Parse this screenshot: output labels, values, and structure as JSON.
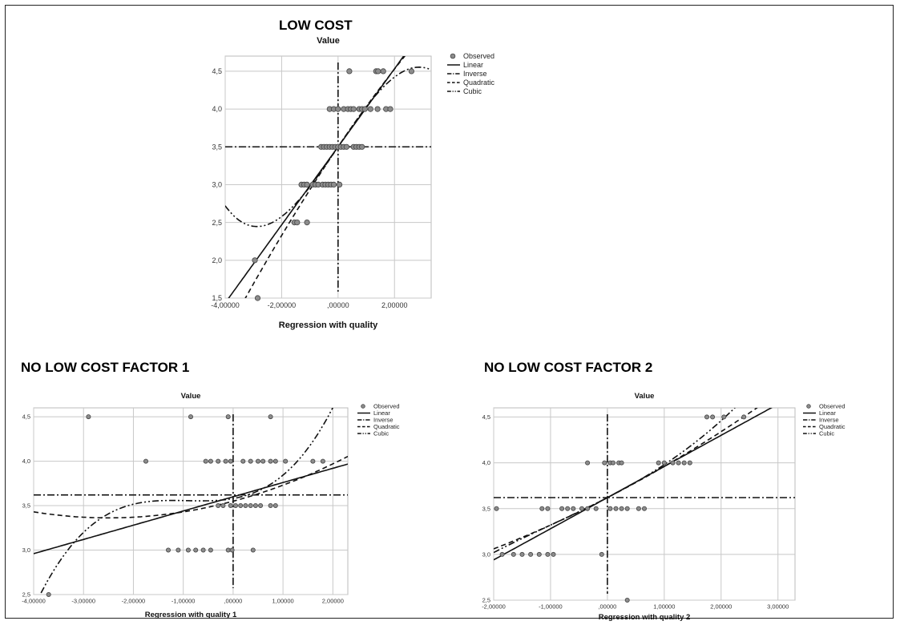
{
  "section_titles": {
    "low_cost": "LOW COST",
    "factor1": "NO LOW COST FACTOR 1",
    "factor2": "NO LOW COST FACTOR 2"
  },
  "chart_data": [
    {
      "id": "low-cost",
      "type": "scatter",
      "title": "Value",
      "xlabel": "Regression with quality",
      "ylabel": "",
      "xlim": [
        -4.0,
        3.3
      ],
      "ylim": [
        1.5,
        4.7
      ],
      "xticks": [
        -4.0,
        -2.0,
        0.0,
        2.0
      ],
      "xtick_labels": [
        "-4,00000",
        "-2,00000",
        ",00000",
        "2,00000"
      ],
      "yticks": [
        1.5,
        2.0,
        2.5,
        3.0,
        3.5,
        4.0,
        4.5
      ],
      "ytick_labels": [
        "1,5",
        "2,0",
        "2,5",
        "3,0",
        "3,5",
        "4,0",
        "4,5"
      ],
      "grid": true,
      "legend": [
        "Observed",
        "Linear",
        "Inverse",
        "Quadratic",
        "Cubic"
      ],
      "legend_position": "top-right",
      "observed": [
        [
          -2.95,
          2.0
        ],
        [
          -2.85,
          1.5
        ],
        [
          -1.55,
          2.5
        ],
        [
          -1.45,
          2.5
        ],
        [
          -1.1,
          2.5
        ],
        [
          -1.3,
          3.0
        ],
        [
          -1.2,
          3.0
        ],
        [
          -1.1,
          3.0
        ],
        [
          -0.9,
          3.0
        ],
        [
          -0.8,
          3.0
        ],
        [
          -0.7,
          3.0
        ],
        [
          -0.55,
          3.0
        ],
        [
          -0.45,
          3.0
        ],
        [
          -0.35,
          3.0
        ],
        [
          -0.25,
          3.0
        ],
        [
          -0.15,
          3.0
        ],
        [
          0.05,
          3.0
        ],
        [
          -0.6,
          3.5
        ],
        [
          -0.5,
          3.5
        ],
        [
          -0.4,
          3.5
        ],
        [
          -0.3,
          3.5
        ],
        [
          -0.2,
          3.5
        ],
        [
          -0.1,
          3.5
        ],
        [
          0.0,
          3.5
        ],
        [
          0.1,
          3.5
        ],
        [
          0.2,
          3.5
        ],
        [
          0.3,
          3.5
        ],
        [
          0.55,
          3.5
        ],
        [
          0.65,
          3.5
        ],
        [
          0.75,
          3.5
        ],
        [
          0.85,
          3.5
        ],
        [
          -0.3,
          4.0
        ],
        [
          -0.15,
          4.0
        ],
        [
          0.0,
          4.0
        ],
        [
          0.2,
          4.0
        ],
        [
          0.35,
          4.0
        ],
        [
          0.45,
          4.0
        ],
        [
          0.55,
          4.0
        ],
        [
          0.75,
          4.0
        ],
        [
          0.85,
          4.0
        ],
        [
          0.95,
          4.0
        ],
        [
          1.15,
          4.0
        ],
        [
          1.4,
          4.0
        ],
        [
          1.7,
          4.0
        ],
        [
          1.85,
          4.0
        ],
        [
          0.4,
          4.5
        ],
        [
          1.35,
          4.5
        ],
        [
          1.42,
          4.5
        ],
        [
          1.6,
          4.5
        ],
        [
          2.6,
          4.5
        ]
      ],
      "fits": {
        "linear": {
          "a": 3.5,
          "b": 0.516
        },
        "inverse": {
          "a": 3.5,
          "b": 0.0
        },
        "quadratic": {
          "a": 3.5,
          "b": 0.55,
          "c": -0.018
        },
        "cubic": {
          "a": 3.5,
          "b": 0.55,
          "c": 0.0,
          "d": -0.0222
        }
      }
    },
    {
      "id": "factor1",
      "type": "scatter",
      "title": "Value",
      "xlabel": "Regression with quality 1",
      "ylabel": "",
      "xlim": [
        -4.0,
        2.3
      ],
      "ylim": [
        2.5,
        4.6
      ],
      "xticks": [
        -4.0,
        -3.0,
        -2.0,
        -1.0,
        0.0,
        1.0,
        2.0
      ],
      "xtick_labels": [
        "-4,00000",
        "-3,00000",
        "-2,00000",
        "-1,00000",
        ",00000",
        "1,00000",
        "2,00000"
      ],
      "yticks": [
        2.5,
        3.0,
        3.5,
        4.0,
        4.5
      ],
      "ytick_labels": [
        "2,5",
        "3,0",
        "3,5",
        "4,0",
        "4,5"
      ],
      "grid": true,
      "legend": [
        "Observed",
        "Linear",
        "Inverse",
        "Quadratic",
        "Cubic"
      ],
      "legend_position": "top-right",
      "observed": [
        [
          -3.7,
          2.5
        ],
        [
          -1.3,
          3.0
        ],
        [
          -1.1,
          3.0
        ],
        [
          -0.9,
          3.0
        ],
        [
          -0.75,
          3.0
        ],
        [
          -0.6,
          3.0
        ],
        [
          -0.45,
          3.0
        ],
        [
          -0.1,
          3.0
        ],
        [
          -0.02,
          3.0
        ],
        [
          0.4,
          3.0
        ],
        [
          -0.3,
          3.5
        ],
        [
          -0.2,
          3.5
        ],
        [
          -0.05,
          3.5
        ],
        [
          0.05,
          3.5
        ],
        [
          0.15,
          3.5
        ],
        [
          0.25,
          3.5
        ],
        [
          0.35,
          3.5
        ],
        [
          0.45,
          3.5
        ],
        [
          0.55,
          3.5
        ],
        [
          0.75,
          3.5
        ],
        [
          0.85,
          3.5
        ],
        [
          -0.55,
          4.0
        ],
        [
          -0.45,
          4.0
        ],
        [
          -0.3,
          4.0
        ],
        [
          -0.15,
          4.0
        ],
        [
          -0.05,
          4.0
        ],
        [
          0.2,
          4.0
        ],
        [
          0.35,
          4.0
        ],
        [
          0.5,
          4.0
        ],
        [
          0.6,
          4.0
        ],
        [
          0.75,
          4.0
        ],
        [
          0.85,
          4.0
        ],
        [
          1.05,
          4.0
        ],
        [
          1.6,
          4.0
        ],
        [
          1.8,
          4.0
        ],
        [
          -1.75,
          4.0
        ],
        [
          -2.9,
          4.5
        ],
        [
          -0.85,
          4.5
        ],
        [
          -0.1,
          4.5
        ],
        [
          0.75,
          4.5
        ]
      ],
      "fits": {
        "linear": {
          "a": 3.6,
          "b": 0.16
        },
        "inverse": {
          "a": 3.62,
          "b": 0.0
        },
        "quadratic": {
          "a": 3.55,
          "b": 0.15,
          "c": 0.03
        },
        "cubic": {
          "a": 3.58,
          "b": 0.1,
          "c": 0.12,
          "d": 0.043
        }
      }
    },
    {
      "id": "factor2",
      "type": "scatter",
      "title": "Value",
      "xlabel": "Regression with quality 2",
      "ylabel": "",
      "xlim": [
        -2.0,
        3.3
      ],
      "ylim": [
        2.5,
        4.6
      ],
      "xticks": [
        -2.0,
        -1.0,
        0.0,
        1.0,
        2.0,
        3.0
      ],
      "xtick_labels": [
        "-2,00000",
        "-1,00000",
        ",00000",
        "1,00000",
        "2,00000",
        "3,00000"
      ],
      "yticks": [
        2.5,
        3.0,
        3.5,
        4.0,
        4.5
      ],
      "ytick_labels": [
        "2,5",
        "3,0",
        "3,5",
        "4,0",
        "4,5"
      ],
      "grid": true,
      "legend": [
        "Observed",
        "Linear",
        "Inverse",
        "Quadratic",
        "Cubic"
      ],
      "legend_position": "top-right",
      "observed": [
        [
          -1.95,
          3.5
        ],
        [
          -1.85,
          3.0
        ],
        [
          -1.65,
          3.0
        ],
        [
          -1.5,
          3.0
        ],
        [
          -1.35,
          3.0
        ],
        [
          -1.2,
          3.0
        ],
        [
          -1.05,
          3.0
        ],
        [
          -0.95,
          3.0
        ],
        [
          -0.1,
          3.0
        ],
        [
          -1.15,
          3.5
        ],
        [
          -1.05,
          3.5
        ],
        [
          -0.8,
          3.5
        ],
        [
          -0.7,
          3.5
        ],
        [
          -0.6,
          3.5
        ],
        [
          -0.45,
          3.5
        ],
        [
          -0.35,
          3.5
        ],
        [
          -0.2,
          3.5
        ],
        [
          0.05,
          3.5
        ],
        [
          0.15,
          3.5
        ],
        [
          0.25,
          3.5
        ],
        [
          0.35,
          3.5
        ],
        [
          0.55,
          3.5
        ],
        [
          0.65,
          3.5
        ],
        [
          -0.35,
          4.0
        ],
        [
          -0.05,
          4.0
        ],
        [
          0.05,
          4.0
        ],
        [
          0.1,
          4.0
        ],
        [
          0.2,
          4.0
        ],
        [
          0.25,
          4.0
        ],
        [
          0.9,
          4.0
        ],
        [
          1.0,
          4.0
        ],
        [
          1.15,
          4.0
        ],
        [
          1.25,
          4.0
        ],
        [
          1.35,
          4.0
        ],
        [
          1.45,
          4.0
        ],
        [
          1.75,
          4.5
        ],
        [
          1.85,
          4.5
        ],
        [
          2.05,
          4.5
        ],
        [
          2.4,
          4.5
        ],
        [
          0.35,
          2.5
        ]
      ],
      "fits": {
        "linear": {
          "a": 3.62,
          "b": 0.34
        },
        "inverse": {
          "a": 3.62,
          "b": 0.0
        },
        "quadratic": {
          "a": 3.62,
          "b": 0.32,
          "c": 0.02
        },
        "cubic": {
          "a": 3.62,
          "b": 0.32,
          "c": 0.03,
          "d": 0.01
        }
      }
    }
  ]
}
